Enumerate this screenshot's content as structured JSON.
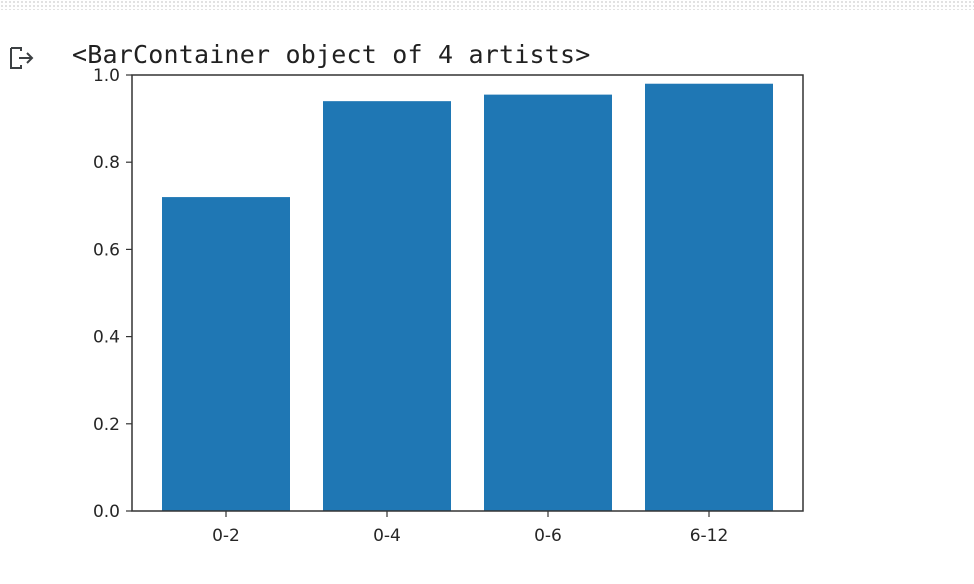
{
  "output": {
    "text": "<BarContainer object of 4 artists>",
    "icon": "output-redirect-icon"
  },
  "colors": {
    "bar": "#1f77b4",
    "axes": "#333333",
    "text": "#262626"
  },
  "chart_data": {
    "type": "bar",
    "categories": [
      "0-2",
      "0-4",
      "0-6",
      "6-12"
    ],
    "values": [
      0.72,
      0.94,
      0.955,
      0.98
    ],
    "title": "",
    "xlabel": "",
    "ylabel": "",
    "ylim": [
      0,
      1.0
    ],
    "yticks": [
      "0.0",
      "0.2",
      "0.4",
      "0.6",
      "0.8",
      "1.0"
    ],
    "grid": false
  }
}
